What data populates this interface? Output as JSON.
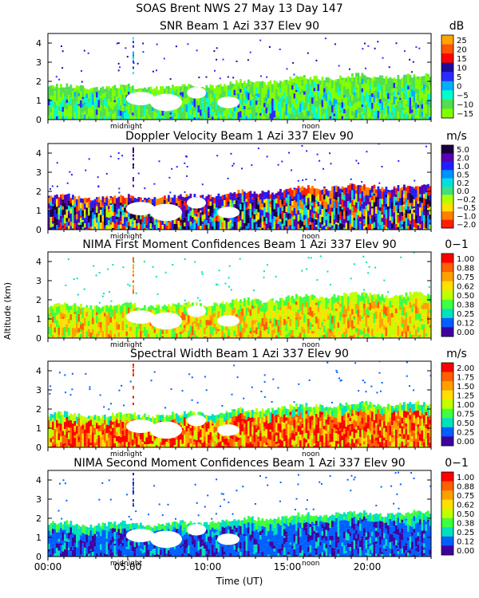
{
  "chart_data": {
    "title": "SOAS Brent NWS  27 May 13 Day 147",
    "ylabel": "Altitude (km)",
    "xlabel": "Time (UT)",
    "x_range": [
      0,
      24
    ],
    "x_ticks": [
      {
        "value": 0,
        "label": "00:00"
      },
      {
        "value": 5,
        "label": "05:00"
      },
      {
        "value": 10,
        "label": "10:00"
      },
      {
        "value": 15,
        "label": "15:00"
      },
      {
        "value": 20,
        "label": "20:00"
      }
    ],
    "day_markers": [
      {
        "value": 5.3,
        "label": "midnight"
      },
      {
        "value": 17.3,
        "label": "noon"
      }
    ],
    "panels": [
      {
        "type": "heatmap",
        "title": "SNR Beam 1 Azi 337 Elev 90",
        "unit": "dB",
        "ylim": [
          0,
          4.5
        ],
        "y_ticks": [
          0,
          1,
          2,
          3,
          4
        ],
        "colorbar_labels": [
          "25",
          "20",
          "15",
          "10",
          "5",
          "0",
          "−5",
          "−10",
          "−15"
        ],
        "colorbar_colors": [
          "#ffa500",
          "#ff5500",
          "#ff0000",
          "#1a0aa0",
          "#2b2bff",
          "#00b0ff",
          "#00ffcc",
          "#4fdf4f",
          "#80ff00"
        ]
      },
      {
        "type": "heatmap",
        "title": "Doppler Velocity Beam 1 Azi 337 Elev 90",
        "unit": "m/s",
        "ylim": [
          0,
          4.5
        ],
        "y_ticks": [
          0,
          1,
          2,
          3,
          4
        ],
        "colorbar_labels": [
          "5.0",
          "2.0",
          "1.0",
          "0.5",
          "0.2",
          "0.0",
          "−0.2",
          "−0.5",
          "−1.0",
          "−2.0"
        ],
        "colorbar_colors": [
          "#1a0040",
          "#5a00b0",
          "#2020ff",
          "#0090ff",
          "#00e0e0",
          "#40e080",
          "#b0ff00",
          "#ffe000",
          "#ff8000",
          "#ff2000"
        ]
      },
      {
        "type": "heatmap",
        "title": "NIMA First Moment Confidences Beam 1 Azi 337 Elev 90",
        "unit": "0−1",
        "ylim": [
          0,
          4.5
        ],
        "y_ticks": [
          0,
          1,
          2,
          3,
          4
        ],
        "colorbar_labels": [
          "1.00",
          "0.88",
          "0.75",
          "0.62",
          "0.50",
          "0.38",
          "0.25",
          "0.12",
          "0.00"
        ],
        "colorbar_colors": [
          "#ff0000",
          "#ff6000",
          "#ffa000",
          "#ffe000",
          "#c0ff00",
          "#40ff40",
          "#00e0c0",
          "#0060ff",
          "#4000a0"
        ]
      },
      {
        "type": "heatmap",
        "title": "Spectral Width Beam 1 Azi 337 Elev 90",
        "unit": "m/s",
        "ylim": [
          0,
          4.5
        ],
        "y_ticks": [
          0,
          1,
          2,
          3,
          4
        ],
        "colorbar_labels": [
          "2.00",
          "1.75",
          "1.50",
          "1.25",
          "1.00",
          "0.75",
          "0.50",
          "0.25",
          "0.00"
        ],
        "colorbar_colors": [
          "#ff0000",
          "#ff6000",
          "#ffa000",
          "#ffe000",
          "#c0ff00",
          "#40ff40",
          "#00e0c0",
          "#0060ff",
          "#4000a0"
        ]
      },
      {
        "type": "heatmap",
        "title": "NIMA Second Moment Confidences Beam 1 Azi 337 Elev 90",
        "unit": "0−1",
        "ylim": [
          0,
          4.5
        ],
        "y_ticks": [
          0,
          1,
          2,
          3,
          4
        ],
        "colorbar_labels": [
          "1.00",
          "0.88",
          "0.75",
          "0.62",
          "0.50",
          "0.38",
          "0.25",
          "0.12",
          "0.00"
        ],
        "colorbar_colors": [
          "#ff0000",
          "#ff6000",
          "#ffa000",
          "#ffe000",
          "#c0ff00",
          "#40ff40",
          "#00e0c0",
          "#0060ff",
          "#4000a0"
        ]
      }
    ]
  }
}
